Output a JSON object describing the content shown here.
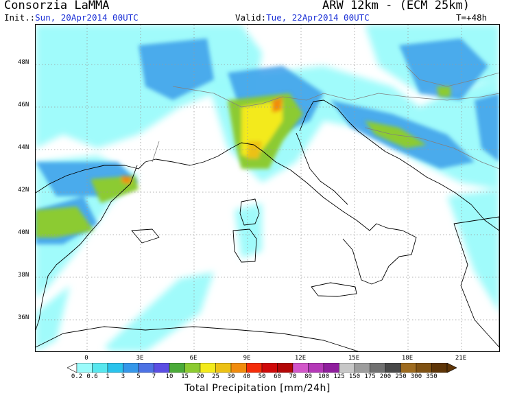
{
  "header": {
    "org": "Consorzia LaMMA",
    "model": "ARW 12km - (ECM 25km)",
    "init_label": "Init.:",
    "init_value": "Sun, 20Apr2014 00UTC",
    "valid_label": "Valid:",
    "valid_value": "Tue, 22Apr2014 00UTC",
    "forecast_step": "T=+48h"
  },
  "axes": {
    "lat_labels": [
      "48N",
      "46N",
      "44N",
      "42N",
      "40N",
      "38N",
      "36N"
    ],
    "lon_labels": [
      "0",
      "3E",
      "6E",
      "9E",
      "12E",
      "15E",
      "18E",
      "21E"
    ]
  },
  "legend": {
    "title": "Total Precipitation [mm/24h]",
    "thresholds": [
      "0.2",
      "0.6",
      "1",
      "3",
      "5",
      "7",
      "10",
      "15",
      "20",
      "25",
      "30",
      "40",
      "50",
      "60",
      "70",
      "80",
      "100",
      "125",
      "150",
      "175",
      "200",
      "250",
      "300",
      "350"
    ],
    "colors": [
      "#9bfbfb",
      "#57e7ee",
      "#2ac3ec",
      "#3597e9",
      "#4d72e4",
      "#5b4ee3",
      "#4aaa38",
      "#8ccb31",
      "#f3ea1b",
      "#ecc114",
      "#f18c0d",
      "#f42c09",
      "#cf0909",
      "#b30707",
      "#d256c9",
      "#b438b7",
      "#8f1e9d",
      "#c7c7c7",
      "#9d9d9d",
      "#707070",
      "#484848",
      "#9e6b1f",
      "#7f5112",
      "#5e3507"
    ],
    "colors_note": ""
  },
  "map": {
    "water_color": "#ffffff",
    "coast_color": "#000000",
    "border_color": "#808080",
    "grid_color": "#999999"
  }
}
